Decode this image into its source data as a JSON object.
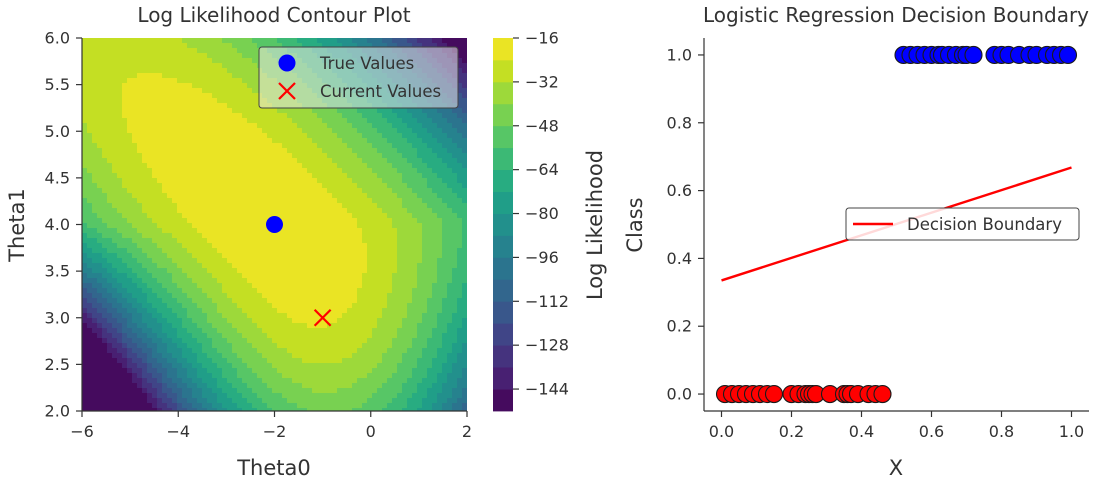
{
  "chart_data": [
    {
      "type": "contour",
      "title": "Log Likelihood Contour Plot",
      "xlabel": "Theta0",
      "ylabel": "Theta1",
      "xlim": [
        -6,
        2
      ],
      "ylim": [
        2,
        6
      ],
      "xticks": [
        "−6",
        "−4",
        "−2",
        "0",
        "2"
      ],
      "yticks": [
        "2.0",
        "2.5",
        "3.0",
        "3.5",
        "4.0",
        "4.5",
        "5.0",
        "5.5",
        "6.0"
      ],
      "zlim": [
        -152,
        -16
      ],
      "colorbar_label": "Log Likelihood",
      "colorbar_ticks": [
        "−16",
        "−32",
        "−48",
        "−64",
        "−80",
        "−96",
        "−112",
        "−128",
        "−144"
      ],
      "colormap": "viridis",
      "points": [
        {
          "label": "True Values",
          "x": -2,
          "y": 4,
          "marker": "circle",
          "color": "#0000ff"
        },
        {
          "label": "Current Values",
          "x": -1,
          "y": 3,
          "marker": "x",
          "color": "#ff0000"
        }
      ],
      "legend_position": "upper-right"
    },
    {
      "type": "scatter+line",
      "title": "Logistic Regression Decision Boundary",
      "xlabel": "X",
      "ylabel": "Class",
      "xlim": [
        -0.05,
        1.05
      ],
      "ylim": [
        -0.05,
        1.05
      ],
      "xticks": [
        "0.0",
        "0.2",
        "0.4",
        "0.6",
        "0.8",
        "1.0"
      ],
      "yticks": [
        "0.0",
        "0.2",
        "0.4",
        "0.6",
        "0.8",
        "1.0"
      ],
      "class0": {
        "color": "#ff0000",
        "x": [
          0.01,
          0.03,
          0.05,
          0.07,
          0.09,
          0.11,
          0.13,
          0.15,
          0.2,
          0.22,
          0.24,
          0.25,
          0.26,
          0.27,
          0.31,
          0.35,
          0.36,
          0.37,
          0.39,
          0.42,
          0.44,
          0.46
        ]
      },
      "class1": {
        "color": "#0000ff",
        "x": [
          0.52,
          0.54,
          0.56,
          0.58,
          0.6,
          0.62,
          0.63,
          0.65,
          0.67,
          0.69,
          0.7,
          0.72,
          0.78,
          0.8,
          0.82,
          0.85,
          0.88,
          0.9,
          0.93,
          0.95,
          0.97,
          0.99
        ]
      },
      "line": {
        "label": "Decision Boundary",
        "color": "#ff0000",
        "x": [
          0.0,
          1.0
        ],
        "y": [
          0.335,
          0.668
        ]
      },
      "legend_position": "center-right"
    }
  ]
}
